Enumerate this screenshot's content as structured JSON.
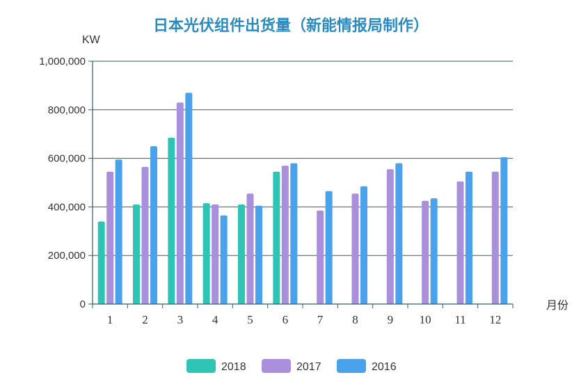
{
  "chart_data": {
    "type": "bar",
    "title": "日本光伏组件出货量（新能情报局制作）",
    "ylabel": "KW",
    "xlabel": "月份",
    "ylim": [
      0,
      1000000
    ],
    "yticks": [
      "0",
      "200,000",
      "400,000",
      "600,000",
      "800,000",
      "1,000,000"
    ],
    "categories": [
      "1",
      "2",
      "3",
      "4",
      "5",
      "6",
      "7",
      "8",
      "9",
      "10",
      "11",
      "12"
    ],
    "grid": true,
    "legend_position": "bottom",
    "series": [
      {
        "name": "2018",
        "color": "#2ec4b6",
        "values": [
          340000,
          410000,
          685000,
          415000,
          410000,
          545000,
          null,
          null,
          null,
          null,
          null,
          null
        ]
      },
      {
        "name": "2017",
        "color": "#a98fdc",
        "values": [
          545000,
          565000,
          830000,
          410000,
          455000,
          570000,
          385000,
          455000,
          555000,
          425000,
          505000,
          545000
        ]
      },
      {
        "name": "2016",
        "color": "#4ba2ec",
        "values": [
          595000,
          650000,
          870000,
          365000,
          405000,
          580000,
          465000,
          485000,
          580000,
          435000,
          545000,
          605000
        ]
      }
    ]
  }
}
